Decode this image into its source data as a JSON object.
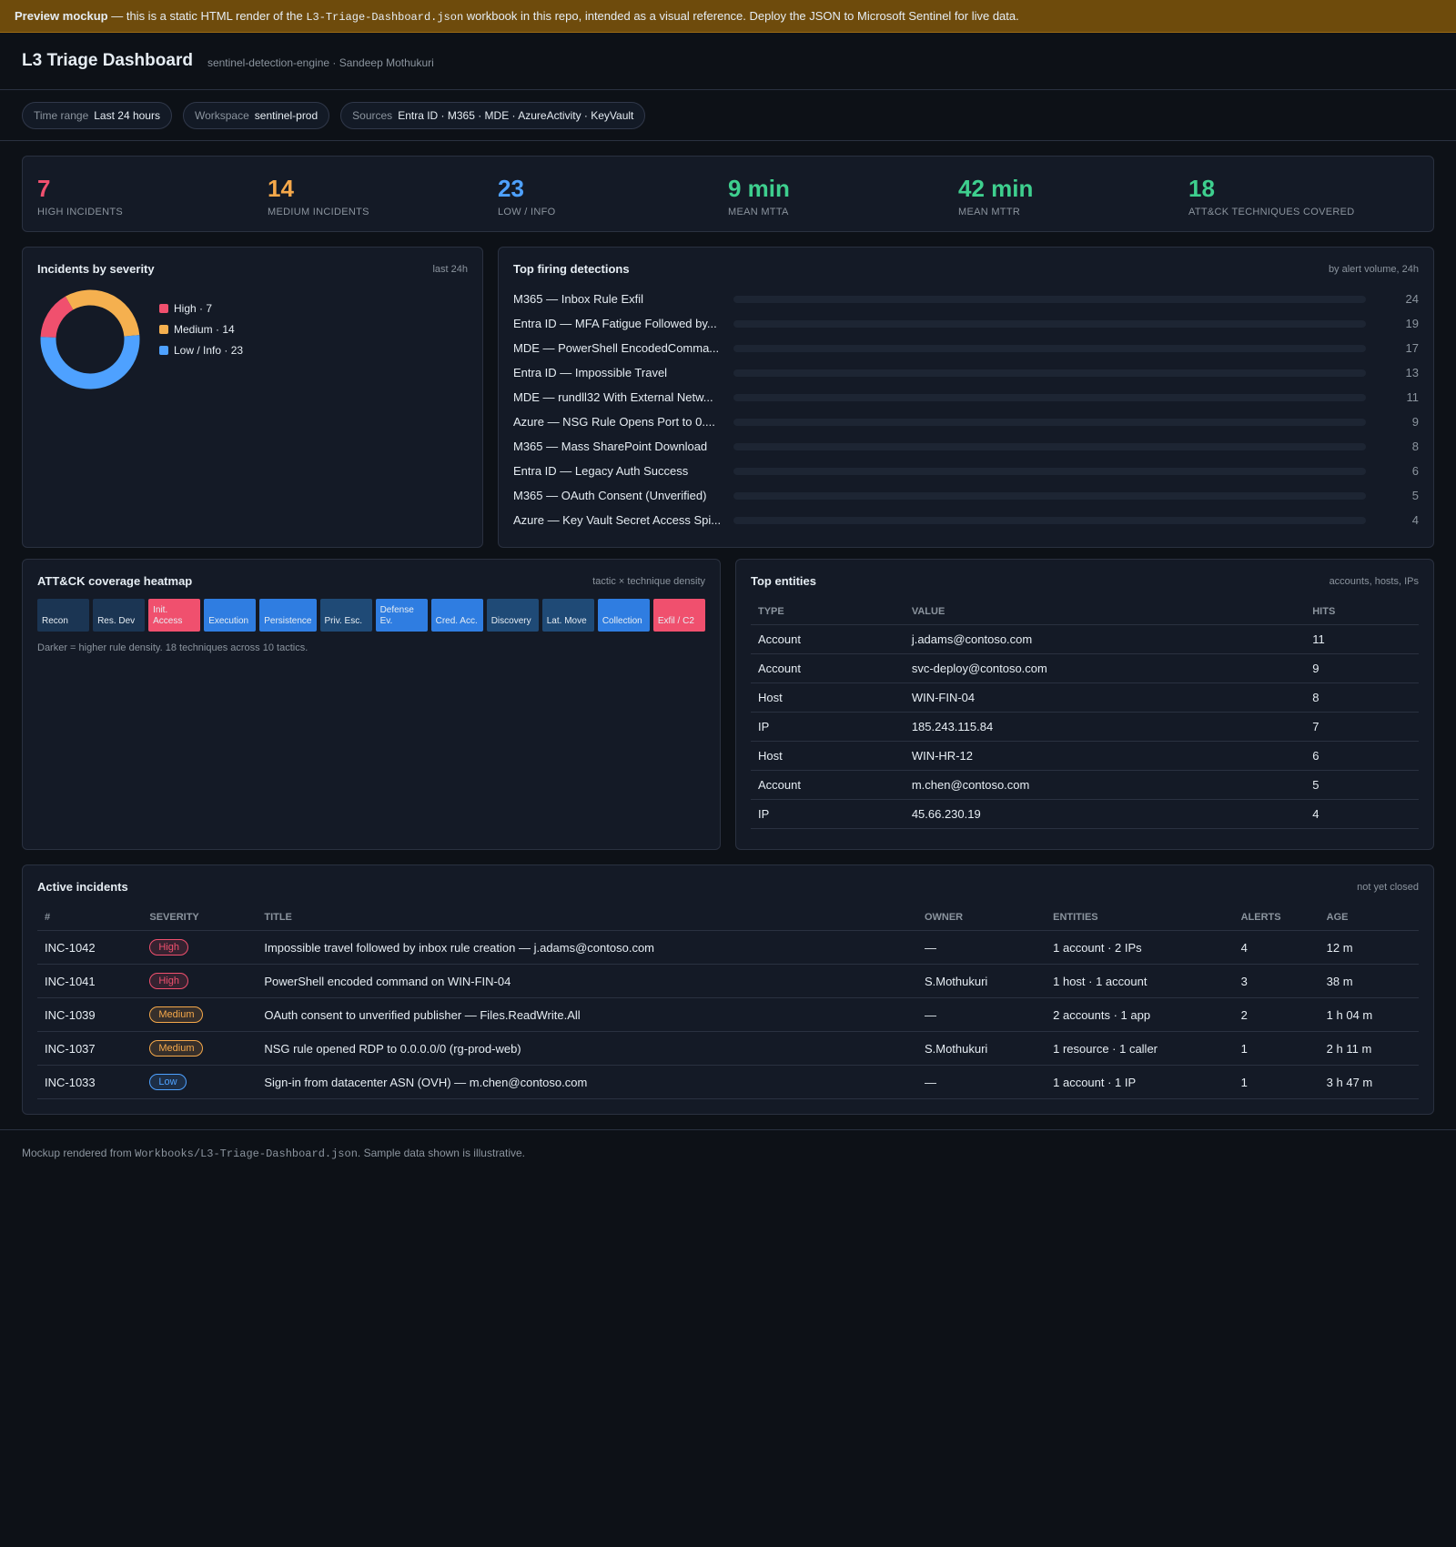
{
  "banner": {
    "strong": "Preview mockup",
    "before": " — this is a static HTML render of the ",
    "code": "L3-Triage-Dashboard.json",
    "after": " workbook in this repo, intended as a visual reference. Deploy the JSON to Microsoft Sentinel for live data."
  },
  "header": {
    "title": "L3 Triage Dashboard",
    "subtitle": "sentinel-detection-engine · Sandeep Mothukuri"
  },
  "filters": [
    {
      "label": "Time range",
      "value": "Last 24 hours"
    },
    {
      "label": "Workspace",
      "value": "sentinel-prod"
    },
    {
      "label": "Sources",
      "value": "Entra ID · M365 · MDE · AzureActivity · KeyVault"
    }
  ],
  "kpis": [
    {
      "value": 7,
      "label": "HIGH INCIDENTS",
      "color": "#f0506e"
    },
    {
      "value": 14,
      "label": "MEDIUM INCIDENTS",
      "color": "#f5a84a"
    },
    {
      "value": 23,
      "label": "LOW / INFO",
      "color": "#4ea1ff"
    },
    {
      "value": "9 min",
      "label": "MEAN MTTA",
      "color": "#3ecf8e"
    },
    {
      "value": "42 min",
      "label": "MEAN MTTR",
      "color": "#3ecf8e"
    },
    {
      "value": 18,
      "label": "ATT&CK TECHNIQUES COVERED",
      "color": "#3ecf8e"
    }
  ],
  "severity_chart": {
    "type": "donut",
    "title": "Incidents by severity",
    "note": "last 24h",
    "segments": [
      {
        "label": "High · 7",
        "value": 7,
        "color": "#f0506e"
      },
      {
        "label": "Medium · 14",
        "value": 14,
        "color": "#f5b04f"
      },
      {
        "label": "Low / Info · 23",
        "value": 23,
        "color": "#4ea1ff"
      }
    ]
  },
  "detections": {
    "title": "Top firing detections",
    "note": "by alert volume, 24h",
    "rows": [
      {
        "name": "M365 — Inbox Rule Exfil",
        "count": 24
      },
      {
        "name": "Entra ID — MFA Fatigue Followed by...",
        "count": 19
      },
      {
        "name": "MDE — PowerShell EncodedComma...",
        "count": 17
      },
      {
        "name": "Entra ID — Impossible Travel",
        "count": 13
      },
      {
        "name": "MDE — rundll32 With External Netw...",
        "count": 11
      },
      {
        "name": "Azure — NSG Rule Opens Port to 0....",
        "count": 9
      },
      {
        "name": "M365 — Mass SharePoint Download",
        "count": 8
      },
      {
        "name": "Entra ID — Legacy Auth Success",
        "count": 6
      },
      {
        "name": "M365 — OAuth Consent (Unverified)",
        "count": 5
      },
      {
        "name": "Azure — Key Vault Secret Access Spi...",
        "count": 4
      }
    ]
  },
  "heatmap": {
    "title": "ATT&CK coverage heatmap",
    "note": "tactic × technique density",
    "tiles": [
      {
        "label": "Recon",
        "color": "#1b3553"
      },
      {
        "label": "Res. Dev",
        "color": "#1b3553"
      },
      {
        "label": "Init. Access",
        "color": "#f0506e"
      },
      {
        "label": "Execution",
        "color": "#2f7de1"
      },
      {
        "label": "Persistence",
        "color": "#2f7de1"
      },
      {
        "label": "Priv. Esc.",
        "color": "#1f4a76"
      },
      {
        "label": "Defense Ev.",
        "color": "#2f7de1"
      },
      {
        "label": "Cred. Acc.",
        "color": "#2f7de1"
      },
      {
        "label": "Discovery",
        "color": "#1f4a76"
      },
      {
        "label": "Lat. Move",
        "color": "#1f4a76"
      },
      {
        "label": "Collection",
        "color": "#2f7de1"
      },
      {
        "label": "Exfil / C2",
        "color": "#f0506e"
      }
    ],
    "caption": "Darker = higher rule density. 18 techniques across 10 tactics."
  },
  "entities": {
    "title": "Top entities",
    "note": "accounts, hosts, IPs",
    "columns": [
      "TYPE",
      "VALUE",
      "HITS"
    ],
    "rows": [
      [
        "Account",
        "j.adams@contoso.com",
        11
      ],
      [
        "Account",
        "svc-deploy@contoso.com",
        9
      ],
      [
        "Host",
        "WIN-FIN-04",
        8
      ],
      [
        "IP",
        "185.243.115.84",
        7
      ],
      [
        "Host",
        "WIN-HR-12",
        6
      ],
      [
        "Account",
        "m.chen@contoso.com",
        5
      ],
      [
        "IP",
        "45.66.230.19",
        4
      ]
    ]
  },
  "incidents": {
    "title": "Active incidents",
    "note": "not yet closed",
    "columns": [
      "#",
      "SEVERITY",
      "TITLE",
      "OWNER",
      "ENTITIES",
      "ALERTS",
      "AGE"
    ],
    "rows": [
      {
        "id": "INC-1042",
        "severity": "High",
        "severity_color": "#f0506e",
        "title": "Impossible travel followed by inbox rule creation — j.adams@contoso.com",
        "owner": "—",
        "entities": "1 account · 2 IPs",
        "alerts": 4,
        "age": "12 m"
      },
      {
        "id": "INC-1041",
        "severity": "High",
        "severity_color": "#f0506e",
        "title": "PowerShell encoded command on WIN-FIN-04",
        "owner": "S.Mothukuri",
        "entities": "1 host · 1 account",
        "alerts": 3,
        "age": "38 m"
      },
      {
        "id": "INC-1039",
        "severity": "Medium",
        "severity_color": "#f5a84a",
        "title": "OAuth consent to unverified publisher — Files.ReadWrite.All",
        "owner": "—",
        "entities": "2 accounts · 1 app",
        "alerts": 2,
        "age": "1 h 04 m"
      },
      {
        "id": "INC-1037",
        "severity": "Medium",
        "severity_color": "#f5a84a",
        "title": "NSG rule opened RDP to 0.0.0.0/0 (rg-prod-web)",
        "owner": "S.Mothukuri",
        "entities": "1 resource · 1 caller",
        "alerts": 1,
        "age": "2 h 11 m"
      },
      {
        "id": "INC-1033",
        "severity": "Low",
        "severity_color": "#4ea1ff",
        "title": "Sign-in from datacenter ASN (OVH) — m.chen@contoso.com",
        "owner": "—",
        "entities": "1 account · 1 IP",
        "alerts": 1,
        "age": "3 h 47 m"
      }
    ]
  },
  "footer": {
    "before": "Mockup rendered from ",
    "code": "Workbooks/L3-Triage-Dashboard.json",
    "after": ". Sample data shown is illustrative."
  }
}
